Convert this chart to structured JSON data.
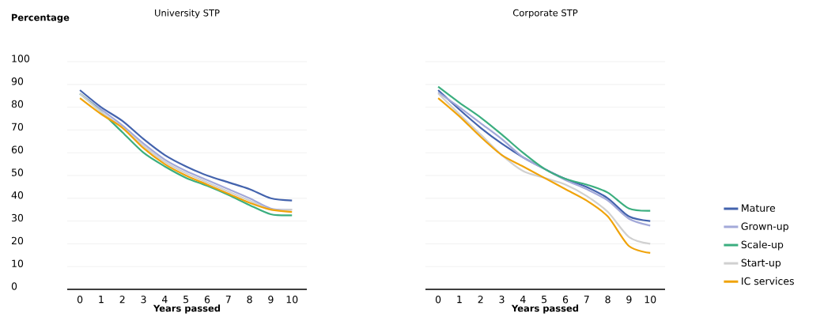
{
  "chart_data": [
    {
      "type": "line",
      "title": "University STP",
      "ylabel": "Percentage",
      "xlabel": "Years passed",
      "x": [
        0,
        1,
        2,
        3,
        4,
        5,
        6,
        7,
        8,
        9,
        10
      ],
      "xlim": [
        -0.6,
        10.7
      ],
      "xticks": [
        0,
        1,
        2,
        3,
        4,
        5,
        6,
        7,
        8,
        9,
        10
      ],
      "ylim": [
        0,
        100
      ],
      "yticks": [
        0,
        10,
        20,
        30,
        40,
        50,
        60,
        70,
        80,
        90,
        100
      ],
      "grid": "y",
      "legend": false,
      "series": [
        {
          "color": "#4363ad",
          "values": [
            87.5,
            80,
            74,
            66,
            59,
            54,
            50,
            47,
            44,
            40,
            39
          ]
        },
        {
          "color": "#a3a9d9",
          "values": [
            86,
            79,
            72,
            64,
            57,
            52,
            48,
            44,
            40,
            35.5,
            35
          ]
        },
        {
          "color": "#3bae7f",
          "values": [
            86,
            78,
            69,
            60,
            54,
            49,
            45.5,
            41.5,
            37,
            33,
            32.5
          ]
        },
        {
          "color": "#d0d0d0",
          "values": [
            86,
            78,
            71,
            63,
            56,
            51,
            47,
            43,
            39,
            35,
            35
          ]
        },
        {
          "color": "#f0a30a",
          "values": [
            84,
            77,
            71,
            62,
            55,
            50,
            46,
            42,
            38,
            35,
            34
          ]
        }
      ]
    },
    {
      "type": "line",
      "title": "Corporate STP",
      "xlabel": "Years passed",
      "x": [
        0,
        1,
        2,
        3,
        4,
        5,
        6,
        7,
        8,
        9,
        10
      ],
      "xlim": [
        -0.6,
        10.7
      ],
      "xticks": [
        0,
        1,
        2,
        3,
        4,
        5,
        6,
        7,
        8,
        9,
        10
      ],
      "ylim": [
        0,
        100
      ],
      "yticks": [
        0,
        10,
        20,
        30,
        40,
        50,
        60,
        70,
        80,
        90,
        100
      ],
      "grid": "y",
      "legend": "right",
      "tick_labels": "x",
      "series": [
        {
          "name": "Mature",
          "color": "#4363ad",
          "values": [
            87.5,
            79,
            71,
            64,
            58,
            53,
            48.5,
            45,
            40,
            32,
            30
          ]
        },
        {
          "name": "Grown-up",
          "color": "#a3a9d9",
          "values": [
            86.5,
            80,
            73,
            66,
            58,
            53,
            48,
            44,
            39,
            31,
            28
          ]
        },
        {
          "name": "Scale-up",
          "color": "#3bae7f",
          "values": [
            89,
            82,
            75.5,
            68,
            60,
            53,
            48.5,
            46,
            42.5,
            35.5,
            34.5
          ]
        },
        {
          "name": "Start-up",
          "color": "#d0d0d0",
          "values": [
            86,
            77,
            68,
            59,
            52,
            49,
            46,
            41,
            34,
            23,
            20
          ]
        },
        {
          "name": "IC services",
          "color": "#f0a30a",
          "values": [
            84,
            76,
            67,
            59,
            54,
            49,
            44,
            39,
            32,
            19,
            16
          ]
        }
      ]
    }
  ]
}
